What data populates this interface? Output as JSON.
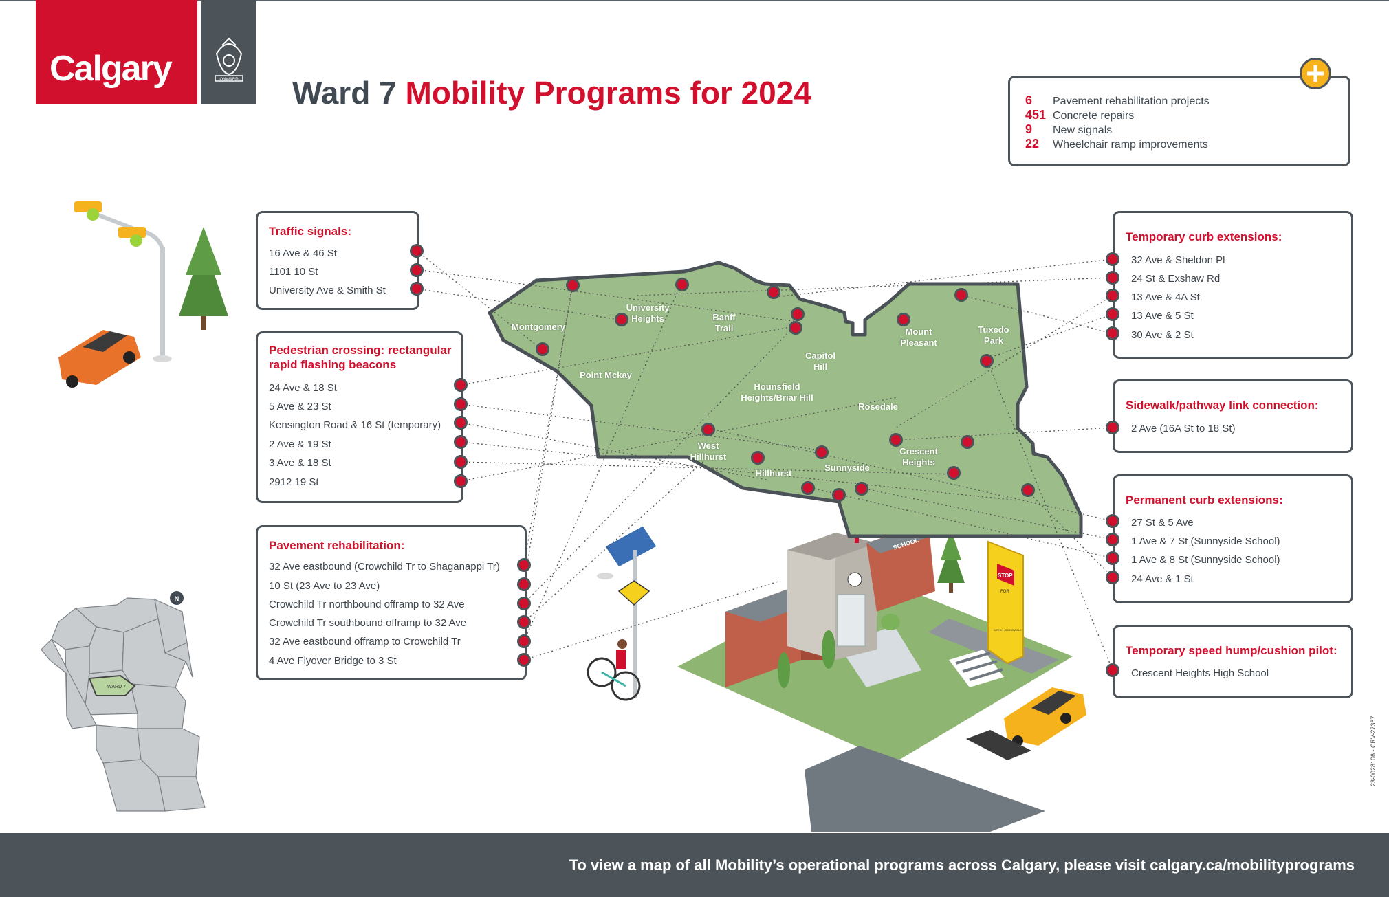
{
  "brand": {
    "logo_text": "Calgary",
    "crest_text": "ONWARD"
  },
  "title": {
    "prefix": "Ward 7",
    "highlight": "Mobility Programs for 2024"
  },
  "summary": [
    {
      "num": "6",
      "label": "Pavement rehabilitation projects"
    },
    {
      "num": "451",
      "label": "Concrete repairs"
    },
    {
      "num": "9",
      "label": "New signals"
    },
    {
      "num": "22",
      "label": "Wheelchair ramp improvements"
    }
  ],
  "traffic_signals": {
    "header": "Traffic signals:",
    "items": [
      "16 Ave & 46 St",
      "1101 10 St",
      "University Ave & Smith St"
    ]
  },
  "pedestrian": {
    "header_line1": "Pedestrian crossing: rectangular",
    "header_line2": "rapid flashing beacons",
    "items": [
      "24 Ave & 18 St",
      "5 Ave & 23 St",
      "Kensington Road & 16 St (temporary)",
      "2 Ave & 19 St",
      "3 Ave & 18 St",
      "2912 19 St"
    ]
  },
  "pavement": {
    "header": "Pavement rehabilitation:",
    "items": [
      "32 Ave eastbound (Crowchild Tr to Shaganappi Tr)",
      "10 St (23 Ave to 23 Ave)",
      "Crowchild Tr northbound offramp to 32 Ave",
      "Crowchild Tr southbound offramp to 32 Ave",
      "32 Ave eastbound offramp to Crowchild Tr",
      "4 Ave Flyover Bridge to 3 St"
    ]
  },
  "temp_curb": {
    "header": "Temporary curb extensions:",
    "items": [
      "32 Ave & Sheldon Pl",
      "24 St & Exshaw Rd",
      "13 Ave & 4A St",
      "13 Ave & 5 St",
      "30 Ave & 2 St"
    ]
  },
  "sidewalk": {
    "header": "Sidewalk/pathway link connection:",
    "items": [
      "2 Ave (16A St to 18 St)"
    ]
  },
  "perm_curb": {
    "header": "Permanent curb extensions:",
    "items": [
      "27 St & 5 Ave",
      "1 Ave & 7 St (Sunnyside School)",
      "1 Ave & 8 St (Sunnyside School)",
      "24 Ave & 1 St"
    ]
  },
  "speed_hump": {
    "header": "Temporary speed hump/cushion pilot:",
    "items": [
      "Crescent Heights High School"
    ]
  },
  "neighbourhoods": {
    "montgomery": "Montgomery",
    "university1": "University",
    "university2": "Heights",
    "banff1": "Banff",
    "banff2": "Trail",
    "point_mckay": "Point Mckay",
    "capitol1": "Capitol",
    "capitol2": "Hill",
    "hounsfield1": "Hounsfield",
    "hounsfield2": "Heights/Briar Hill",
    "mount1": "Mount",
    "mount2": "Pleasant",
    "tuxedo1": "Tuxedo",
    "tuxedo2": "Park",
    "rosedale": "Rosedale",
    "west1": "West",
    "west2": "Hillhurst",
    "hillhurst": "Hillhurst",
    "sunnyside": "Sunnyside",
    "crescent1": "Crescent",
    "crescent2": "Heights"
  },
  "scene": {
    "school_sign": "SCHOOL",
    "stop_sign": "STOP",
    "for_text": "FOR",
    "crosswalk_text": "WITHIN CROSSWALK"
  },
  "inset_map": {
    "ward_label": "WARD 7",
    "compass": "N"
  },
  "footer_text": "To view a map of all Mobility’s operational programs across Calgary, please visit calgary.ca/mobilityprograms",
  "doc_code": "23-0028106 - CRV-27367",
  "colors": {
    "red": "#d0102d",
    "charcoal": "#4c545a",
    "map_green": "#9cbc8a",
    "accent_yellow": "#f5b21c"
  }
}
